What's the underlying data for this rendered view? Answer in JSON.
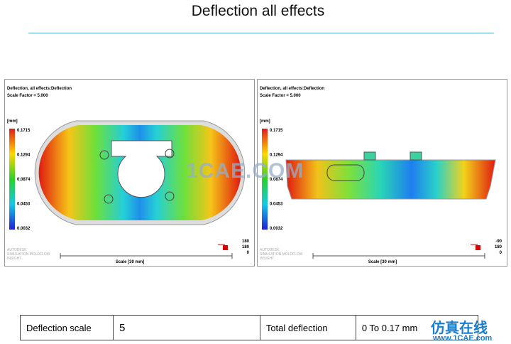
{
  "title": "Deflection all effects",
  "panels": [
    {
      "heading": "Deflection, all effects:Deflection",
      "scale_factor": "Scale Factor = 5.000",
      "unit": "[mm]",
      "legend": [
        "0.1715",
        "0.1294",
        "0.0874",
        "0.0453",
        "0.0032"
      ],
      "triad": [
        "180",
        "180",
        "0"
      ],
      "scale_label": "Scale [30 mm]",
      "logo": [
        "AUTODESK",
        "SIMULATION MOLDFLOW",
        "INSIGHT"
      ]
    },
    {
      "heading": "Deflection, all effects:Deflection",
      "scale_factor": "Scale Factor = 5.000",
      "unit": "[mm]",
      "legend": [
        "0.1715",
        "0.1294",
        "0.0874",
        "0.0453",
        "0.0032"
      ],
      "triad": [
        "-90",
        "180",
        "0"
      ],
      "scale_label": "Scale [30 mm]",
      "logo": [
        "AUTODESK",
        "SIMULATION MOLDFLOW",
        "INSIGHT"
      ]
    }
  ],
  "watermark": "1CAE.COM",
  "table": {
    "rows": [
      [
        "Deflection scale",
        "5",
        "Total deflection",
        "0 To 0.17 mm"
      ]
    ]
  },
  "footer_watermark": {
    "text": "仿真在线",
    "url": "www.1CAE.com"
  }
}
